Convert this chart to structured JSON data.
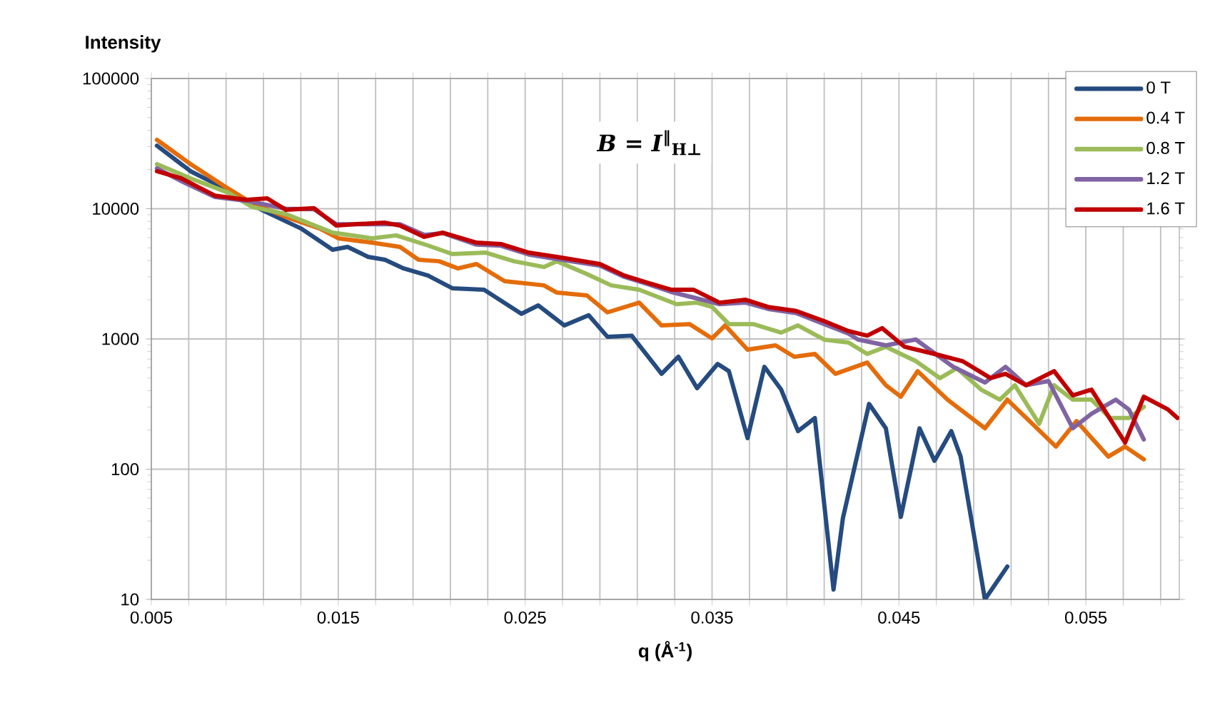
{
  "chart_data": {
    "type": "line",
    "xlabel": "q (Å$^{-1}$)",
    "ylabel": "Intensity",
    "annotations": [
      "*B* = *I*$^{‖}$$_{H⊥}$"
    ],
    "xlim": [
      0.005,
      0.06
    ],
    "ylim": [
      10,
      100000
    ],
    "log": "y",
    "grid": true,
    "legend": "top right",
    "line_style": "solid",
    "marker": "none",
    "xticks": [
      0.005,
      {
        "value": 0.007,
        "label": null
      },
      {
        "value": 0.009,
        "label": null
      },
      {
        "value": 0.011,
        "label": null
      },
      {
        "value": 0.013,
        "label": null
      },
      0.015,
      {
        "value": 0.017,
        "label": null
      },
      {
        "value": 0.019,
        "label": null
      },
      {
        "value": 0.021,
        "label": null
      },
      {
        "value": 0.023,
        "label": null
      },
      0.025,
      {
        "value": 0.027,
        "label": null
      },
      {
        "value": 0.029,
        "label": null
      },
      {
        "value": 0.031,
        "label": null
      },
      {
        "value": 0.033,
        "label": null
      },
      0.035,
      {
        "value": 0.037,
        "label": null
      },
      {
        "value": 0.039,
        "label": null
      },
      {
        "value": 0.041,
        "label": null
      },
      {
        "value": 0.043,
        "label": null
      },
      0.045,
      {
        "value": 0.047,
        "label": null
      },
      {
        "value": 0.049,
        "label": null
      },
      {
        "value": 0.051,
        "label": null
      },
      {
        "value": 0.053,
        "label": null
      },
      0.055,
      {
        "value": 0.057,
        "label": null
      },
      {
        "value": 0.059,
        "label": null
      }
    ],
    "yticks": [
      10,
      100,
      1000,
      10000,
      100000
    ],
    "series": [
      {
        "name": "0 T",
        "color": "#254b7f",
        "x": [
          0.0053,
          0.0071,
          0.0086,
          0.0109,
          0.013,
          0.0147,
          0.0155,
          0.0166,
          0.0175,
          0.0185,
          0.0198,
          0.0211,
          0.0228,
          0.0248,
          0.0257,
          0.0271,
          0.0284,
          0.0294,
          0.0307,
          0.0323,
          0.0332,
          0.0342,
          0.0353,
          0.0359,
          0.0369,
          0.0378,
          0.0387,
          0.0396,
          0.0405,
          0.0415,
          0.042,
          0.0434,
          0.0443,
          0.0451,
          0.0461,
          0.0469,
          0.0478,
          0.0483,
          0.0496,
          0.0508
        ],
        "values": [
          30500,
          19400,
          15100,
          9800,
          7060,
          4840,
          5090,
          4270,
          4060,
          3480,
          3070,
          2450,
          2390,
          1560,
          1810,
          1270,
          1520,
          1040,
          1060,
          540,
          730,
          419,
          643,
          566,
          173,
          611,
          408,
          196,
          247,
          11.9,
          42,
          317,
          206,
          43,
          206,
          116,
          196,
          125,
          10,
          17.9
        ]
      },
      {
        "name": "0.4 T",
        "color": "#e46c0a",
        "x": [
          0.0053,
          0.0071,
          0.0091,
          0.0101,
          0.0109,
          0.0124,
          0.014,
          0.015,
          0.0168,
          0.0183,
          0.0193,
          0.0204,
          0.0214,
          0.0224,
          0.0239,
          0.026,
          0.0267,
          0.0283,
          0.0294,
          0.0311,
          0.0323,
          0.0338,
          0.035,
          0.0357,
          0.0369,
          0.0384,
          0.0394,
          0.0405,
          0.0416,
          0.0433,
          0.0443,
          0.0451,
          0.046,
          0.0476,
          0.0496,
          0.0508,
          0.0534,
          0.0545,
          0.0562,
          0.0571,
          0.0581
        ],
        "values": [
          33800,
          22000,
          14300,
          11700,
          10300,
          8440,
          7060,
          5930,
          5490,
          5090,
          4060,
          3950,
          3480,
          3760,
          2780,
          2580,
          2270,
          2160,
          1600,
          1900,
          1270,
          1300,
          1010,
          1270,
          828,
          893,
          730,
          767,
          540,
          659,
          441,
          360,
          566,
          342,
          206,
          342,
          149,
          234,
          125,
          149,
          119
        ]
      },
      {
        "name": "0.8 T",
        "color": "#9bbb59",
        "x": [
          0.0053,
          0.0071,
          0.0091,
          0.0104,
          0.0122,
          0.0147,
          0.0168,
          0.0181,
          0.0198,
          0.0211,
          0.0229,
          0.0244,
          0.026,
          0.0267,
          0.0283,
          0.0296,
          0.0311,
          0.0331,
          0.0342,
          0.035,
          0.0359,
          0.0372,
          0.0387,
          0.0396,
          0.041,
          0.0423,
          0.0433,
          0.0443,
          0.0459,
          0.0472,
          0.0481,
          0.0494,
          0.0504,
          0.0512,
          0.0525,
          0.0533,
          0.0543,
          0.0553,
          0.0563,
          0.0573,
          0.0581
        ],
        "values": [
          22000,
          17100,
          13300,
          10300,
          9100,
          6550,
          5930,
          6240,
          5220,
          4490,
          4600,
          3950,
          3570,
          3950,
          3150,
          2580,
          2390,
          1850,
          1900,
          1760,
          1300,
          1300,
          1120,
          1270,
          988,
          939,
          767,
          871,
          676,
          500,
          596,
          408,
          342,
          441,
          223,
          441,
          342,
          342,
          247,
          247,
          301
        ]
      },
      {
        "name": "1.2 T",
        "color": "#8064a2",
        "x": [
          0.0053,
          0.0066,
          0.0084,
          0.0101,
          0.0122,
          0.0137,
          0.0149,
          0.0168,
          0.0183,
          0.0196,
          0.0206,
          0.0224,
          0.0237,
          0.0252,
          0.0267,
          0.029,
          0.0303,
          0.0315,
          0.0328,
          0.0354,
          0.0368,
          0.038,
          0.0395,
          0.041,
          0.0423,
          0.0428,
          0.0443,
          0.0459,
          0.0479,
          0.0496,
          0.0507,
          0.0518,
          0.053,
          0.0543,
          0.0553,
          0.0566,
          0.0573,
          0.0581
        ],
        "values": [
          20400,
          16300,
          12300,
          11500,
          10000,
          9900,
          7600,
          7600,
          7600,
          6300,
          6500,
          5300,
          5200,
          4450,
          4100,
          3650,
          3000,
          2650,
          2300,
          1850,
          1900,
          1700,
          1580,
          1300,
          1100,
          990,
          893,
          990,
          611,
          463,
          611,
          441,
          475,
          206,
          266,
          342,
          287,
          169
        ]
      },
      {
        "name": "1.6 T",
        "color": "#c00000",
        "x": [
          0.0053,
          0.0066,
          0.0084,
          0.0101,
          0.0112,
          0.0122,
          0.0137,
          0.0149,
          0.016,
          0.0175,
          0.0183,
          0.0196,
          0.0206,
          0.0224,
          0.0237,
          0.0252,
          0.0267,
          0.029,
          0.0303,
          0.0315,
          0.0328,
          0.034,
          0.0354,
          0.0368,
          0.038,
          0.0395,
          0.041,
          0.0423,
          0.0433,
          0.0441,
          0.0453,
          0.0469,
          0.0484,
          0.0499,
          0.0507,
          0.0518,
          0.0533,
          0.0543,
          0.0553,
          0.0571,
          0.0581,
          0.0594,
          0.0599
        ],
        "values": [
          19400,
          17100,
          12600,
          11700,
          12000,
          9800,
          10100,
          7430,
          7620,
          7810,
          7430,
          6080,
          6550,
          5490,
          5360,
          4600,
          4270,
          3760,
          3070,
          2710,
          2390,
          2390,
          1900,
          2000,
          1760,
          1640,
          1370,
          1150,
          1060,
          1210,
          871,
          767,
          676,
          500,
          540,
          441,
          566,
          369,
          408,
          160,
          360,
          287,
          247
        ]
      }
    ]
  }
}
